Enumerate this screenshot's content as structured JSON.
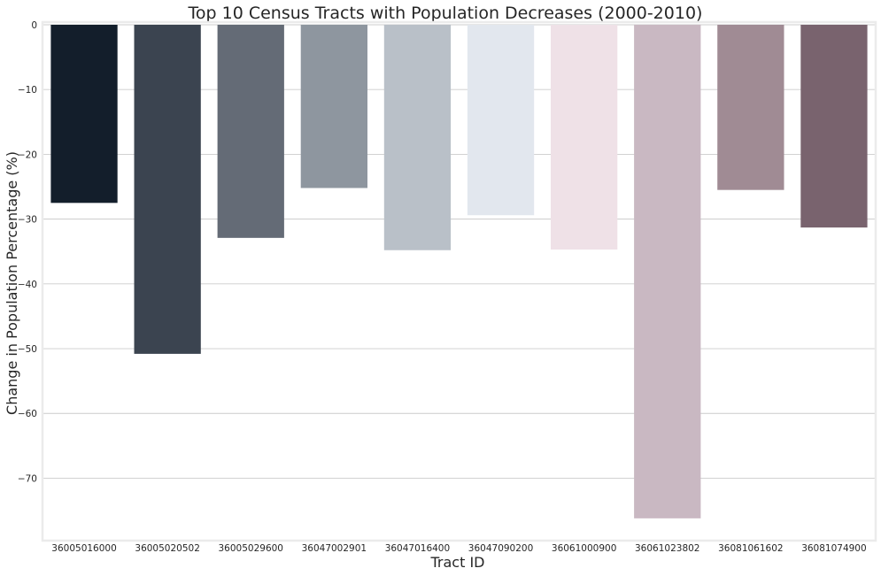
{
  "chart_data": {
    "type": "bar",
    "title": "Top 10 Census Tracts with Population Decreases (2000-2010)",
    "xlabel": "Tract ID",
    "ylabel": "Change in Population Percentage (%)",
    "categories": [
      "36005016000",
      "36005020502",
      "36005029600",
      "36047002901",
      "36047016400",
      "36047090200",
      "36061000900",
      "36061023802",
      "36081061602",
      "36081074900"
    ],
    "values": [
      -27.5,
      -50.8,
      -32.9,
      -25.2,
      -34.8,
      -29.4,
      -34.7,
      -76.2,
      -25.5,
      -31.3
    ],
    "colors": [
      "#131e2b",
      "#3b4450",
      "#646b76",
      "#8e969f",
      "#b9c0c8",
      "#e2e7ee",
      "#efe1e7",
      "#c9b8c2",
      "#a08b94",
      "#79636e"
    ],
    "ylim": [
      -79.5,
      0
    ],
    "yticks": [
      0,
      -10,
      -20,
      -30,
      -40,
      -50,
      -60,
      -70
    ],
    "grid": "horizontal",
    "legend": "none"
  }
}
